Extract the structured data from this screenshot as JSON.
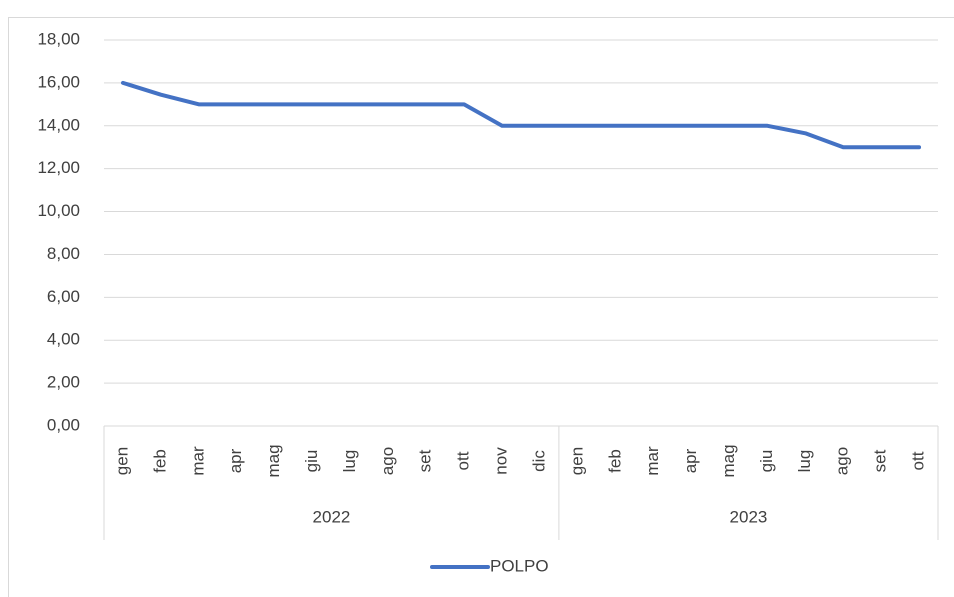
{
  "chart_data": {
    "type": "line",
    "category_groups": [
      {
        "name": "2022",
        "categories": [
          "gen",
          "feb",
          "mar",
          "apr",
          "mag",
          "giu",
          "lug",
          "ago",
          "set",
          "ott",
          "nov",
          "dic"
        ]
      },
      {
        "name": "2023",
        "categories": [
          "gen",
          "feb",
          "mar",
          "apr",
          "mag",
          "giu",
          "lug",
          "ago",
          "set",
          "ott"
        ]
      }
    ],
    "series": [
      {
        "name": "POLPO",
        "color": "#4472c4",
        "values": [
          16,
          15.45,
          15,
          15,
          15,
          15,
          15,
          15,
          15,
          15,
          14,
          14,
          14,
          14,
          14,
          14,
          14,
          14,
          13.65,
          13,
          13,
          13
        ]
      }
    ],
    "ylim": [
      0,
      18
    ],
    "yticks": [
      {
        "value": 0,
        "label": "0,00"
      },
      {
        "value": 2,
        "label": "2,00"
      },
      {
        "value": 4,
        "label": "4,00"
      },
      {
        "value": 6,
        "label": "6,00"
      },
      {
        "value": 8,
        "label": "8,00"
      },
      {
        "value": 10,
        "label": "10,00"
      },
      {
        "value": 12,
        "label": "12,00"
      },
      {
        "value": 14,
        "label": "14,00"
      },
      {
        "value": 16,
        "label": "16,00"
      },
      {
        "value": 18,
        "label": "18,00"
      }
    ],
    "grid": true,
    "legend": "bottom"
  }
}
